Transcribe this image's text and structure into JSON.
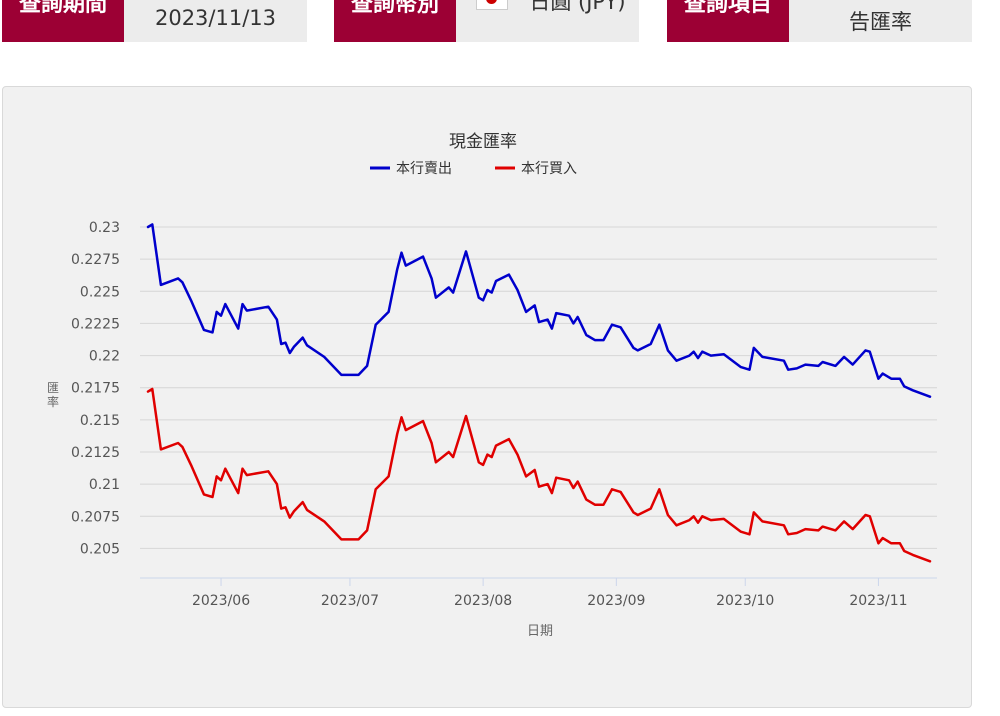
{
  "filters": [
    {
      "label": "查詢期間",
      "value": "2023/11/13"
    },
    {
      "label": "查詢幣別",
      "value": "日圓 (JPY)",
      "icon": "japan-flag-icon"
    },
    {
      "label": "查詢項目",
      "value": "告匯率"
    }
  ],
  "colors": {
    "brand": "#9c0034",
    "sell": "#0000cc",
    "buy": "#e00000"
  },
  "chart_data": {
    "type": "line",
    "title": "現金匯率",
    "xlabel": "日期",
    "ylabel": "匯率",
    "legend_position": "top",
    "grid": true,
    "ylim": [
      0.2027,
      0.23
    ],
    "xlim": [
      "2023-05-15",
      "2023-11-13"
    ],
    "yticks": [
      "0.205",
      "0.2075",
      "0.21",
      "0.2125",
      "0.215",
      "0.2175",
      "0.22",
      "0.2225",
      "0.225",
      "0.2275",
      "0.23"
    ],
    "xticks": [
      {
        "label": "2023/06",
        "date": "2023-06-01"
      },
      {
        "label": "2023/07",
        "date": "2023-07-01"
      },
      {
        "label": "2023/08",
        "date": "2023-08-01"
      },
      {
        "label": "2023/09",
        "date": "2023-09-01"
      },
      {
        "label": "2023/10",
        "date": "2023-10-01"
      },
      {
        "label": "2023/11",
        "date": "2023-11-01"
      }
    ],
    "x": [
      "2023-05-15",
      "2023-05-16",
      "2023-05-18",
      "2023-05-22",
      "2023-05-23",
      "2023-05-25",
      "2023-05-28",
      "2023-05-30",
      "2023-05-31",
      "2023-06-01",
      "2023-06-02",
      "2023-06-05",
      "2023-06-06",
      "2023-06-07",
      "2023-06-12",
      "2023-06-14",
      "2023-06-15",
      "2023-06-16",
      "2023-06-17",
      "2023-06-18",
      "2023-06-20",
      "2023-06-21",
      "2023-06-25",
      "2023-06-29",
      "2023-07-03",
      "2023-07-05",
      "2023-07-07",
      "2023-07-10",
      "2023-07-12",
      "2023-07-13",
      "2023-07-14",
      "2023-07-18",
      "2023-07-20",
      "2023-07-21",
      "2023-07-24",
      "2023-07-25",
      "2023-07-28",
      "2023-07-31",
      "2023-08-01",
      "2023-08-02",
      "2023-08-03",
      "2023-08-04",
      "2023-08-07",
      "2023-08-09",
      "2023-08-11",
      "2023-08-13",
      "2023-08-14",
      "2023-08-16",
      "2023-08-17",
      "2023-08-18",
      "2023-08-21",
      "2023-08-22",
      "2023-08-23",
      "2023-08-25",
      "2023-08-27",
      "2023-08-29",
      "2023-08-31",
      "2023-09-02",
      "2023-09-05",
      "2023-09-06",
      "2023-09-09",
      "2023-09-11",
      "2023-09-13",
      "2023-09-15",
      "2023-09-18",
      "2023-09-19",
      "2023-09-20",
      "2023-09-21",
      "2023-09-23",
      "2023-09-26",
      "2023-09-30",
      "2023-10-02",
      "2023-10-03",
      "2023-10-05",
      "2023-10-10",
      "2023-10-11",
      "2023-10-13",
      "2023-10-15",
      "2023-10-18",
      "2023-10-19",
      "2023-10-22",
      "2023-10-24",
      "2023-10-26",
      "2023-10-29",
      "2023-10-30",
      "2023-11-01",
      "2023-11-02",
      "2023-11-04",
      "2023-11-06",
      "2023-11-07",
      "2023-11-09",
      "2023-11-13"
    ],
    "series": [
      {
        "name": "本行賣出",
        "color": "#0000cc",
        "values": [
          0.23,
          0.2302,
          0.2255,
          0.226,
          0.2257,
          0.2243,
          0.222,
          0.2218,
          0.2234,
          0.2231,
          0.224,
          0.2221,
          0.224,
          0.2235,
          0.2238,
          0.2228,
          0.2209,
          0.221,
          0.2202,
          0.2207,
          0.2214,
          0.2208,
          0.2199,
          0.2185,
          0.2185,
          0.2192,
          0.2224,
          0.2234,
          0.2267,
          0.228,
          0.227,
          0.2277,
          0.226,
          0.2245,
          0.2253,
          0.2249,
          0.2281,
          0.2245,
          0.2243,
          0.2251,
          0.2249,
          0.2258,
          0.2263,
          0.2251,
          0.2234,
          0.2239,
          0.2226,
          0.2228,
          0.2221,
          0.2233,
          0.2231,
          0.2225,
          0.223,
          0.2216,
          0.2212,
          0.2212,
          0.2224,
          0.2222,
          0.2206,
          0.2204,
          0.2209,
          0.2224,
          0.2204,
          0.2196,
          0.22,
          0.2203,
          0.2198,
          0.2203,
          0.22,
          0.2201,
          0.2191,
          0.2189,
          0.2206,
          0.2199,
          0.2196,
          0.2189,
          0.219,
          0.2193,
          0.2192,
          0.2195,
          0.2192,
          0.2199,
          0.2193,
          0.2204,
          0.2203,
          0.2182,
          0.2186,
          0.2182,
          0.2182,
          0.2176,
          0.2173,
          0.2168
        ]
      },
      {
        "name": "本行買入",
        "color": "#e00000",
        "values": [
          0.2172,
          0.2174,
          0.2127,
          0.2132,
          0.2129,
          0.2115,
          0.2092,
          0.209,
          0.2106,
          0.2103,
          0.2112,
          0.2093,
          0.2112,
          0.2107,
          0.211,
          0.21,
          0.2081,
          0.2082,
          0.2074,
          0.2079,
          0.2086,
          0.208,
          0.2071,
          0.2057,
          0.2057,
          0.2064,
          0.2096,
          0.2106,
          0.2139,
          0.2152,
          0.2142,
          0.2149,
          0.2132,
          0.2117,
          0.2125,
          0.2121,
          0.2153,
          0.2117,
          0.2115,
          0.2123,
          0.2121,
          0.213,
          0.2135,
          0.2123,
          0.2106,
          0.2111,
          0.2098,
          0.21,
          0.2093,
          0.2105,
          0.2103,
          0.2097,
          0.2102,
          0.2088,
          0.2084,
          0.2084,
          0.2096,
          0.2094,
          0.2078,
          0.2076,
          0.2081,
          0.2096,
          0.2076,
          0.2068,
          0.2072,
          0.2075,
          0.207,
          0.2075,
          0.2072,
          0.2073,
          0.2063,
          0.2061,
          0.2078,
          0.2071,
          0.2068,
          0.2061,
          0.2062,
          0.2065,
          0.2064,
          0.2067,
          0.2064,
          0.2071,
          0.2065,
          0.2076,
          0.2075,
          0.2054,
          0.2058,
          0.2054,
          0.2054,
          0.2048,
          0.2045,
          0.204
        ]
      }
    ]
  }
}
